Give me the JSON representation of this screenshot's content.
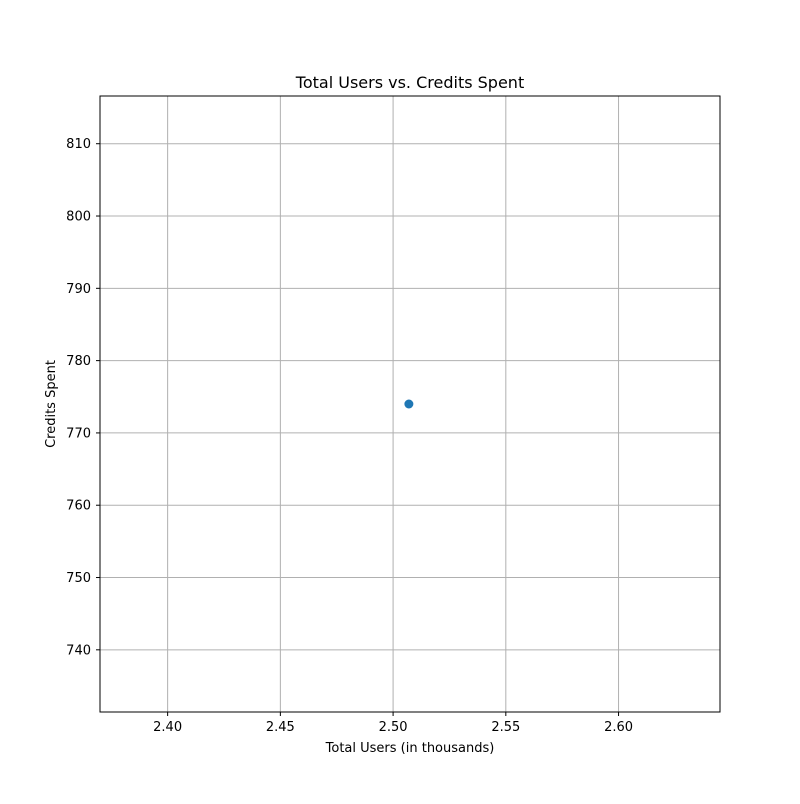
{
  "chart_data": {
    "type": "scatter",
    "title": "Total Users vs. Credits Spent",
    "xlabel": "Total Users (in thousands)",
    "ylabel": "Credits Spent",
    "xlim": [
      2.37,
      2.645
    ],
    "ylim": [
      731.4,
      816.6
    ],
    "xticks": [
      2.4,
      2.45,
      2.5,
      2.55,
      2.6
    ],
    "xtick_labels": [
      "2.40",
      "2.45",
      "2.50",
      "2.55",
      "2.60"
    ],
    "yticks": [
      740,
      750,
      760,
      770,
      780,
      790,
      800,
      810
    ],
    "ytick_labels": [
      "740",
      "750",
      "760",
      "770",
      "780",
      "790",
      "800",
      "810"
    ],
    "grid": true,
    "series": [
      {
        "points": [
          {
            "x": 2.507,
            "y": 774
          }
        ],
        "color": "#1f77b4"
      }
    ]
  }
}
